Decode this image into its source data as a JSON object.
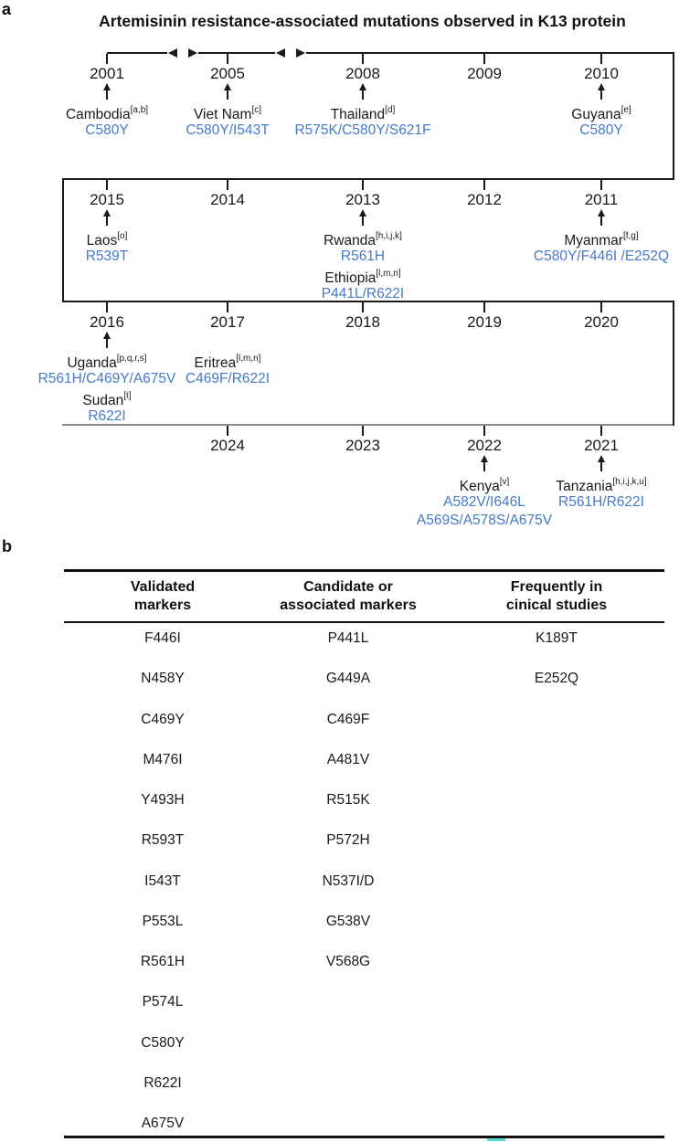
{
  "figure": {
    "panel_a_label": "a",
    "panel_b_label": "b",
    "title": "Artemisinin resistance-associated mutations observed in K13 protein"
  },
  "colors": {
    "mutation_blue": "#4579c9",
    "timeline_dark": "#1a1a1a",
    "timeline_gray": "#8c8c8c",
    "teal_mark": "#5ad8d4"
  },
  "timeline_rows": [
    {
      "years": [
        {
          "year": "2001",
          "slot": 0,
          "arrow": true,
          "annotations": [
            {
              "country": "Cambodia",
              "sup": "[a,b]",
              "mutations": [
                "C580Y"
              ]
            }
          ]
        },
        {
          "year": "2005",
          "slot": 1,
          "arrow": true,
          "annotations": [
            {
              "country": "Viet Nam",
              "sup": "[c]",
              "mutations": [
                "C580Y/I543T"
              ]
            }
          ]
        },
        {
          "year": "2008",
          "slot": 2,
          "arrow": true,
          "annotations": [
            {
              "country": "Thailand",
              "sup": "[d]",
              "mutations": [
                "R575K/C580Y/S621F"
              ]
            }
          ]
        },
        {
          "year": "2009",
          "slot": 3,
          "arrow": false,
          "annotations": []
        },
        {
          "year": "2010",
          "slot": 4,
          "arrow": true,
          "annotations": [
            {
              "country": "Guyana",
              "sup": "[e]",
              "mutations": [
                "C580Y"
              ]
            }
          ]
        }
      ]
    },
    {
      "years": [
        {
          "year": "2015",
          "slot": 0,
          "arrow": true,
          "annotations": [
            {
              "country": "Laos",
              "sup": "[o]",
              "mutations": [
                "R539T"
              ]
            }
          ]
        },
        {
          "year": "2014",
          "slot": 1,
          "arrow": false,
          "annotations": []
        },
        {
          "year": "2013",
          "slot": 2,
          "arrow": true,
          "annotations": [
            {
              "country": "Rwanda",
              "sup": "[h,i,j,k]",
              "mutations": [
                "R561H"
              ]
            },
            {
              "country": "Ethiopia",
              "sup": "[l,m,n]",
              "mutations": [
                "P441L/R622I"
              ]
            }
          ]
        },
        {
          "year": "2012",
          "slot": 3,
          "arrow": false,
          "annotations": []
        },
        {
          "year": "2011",
          "slot": 4,
          "arrow": true,
          "annotations": [
            {
              "country": "Myanmar",
              "sup": "[f,g]",
              "mutations": [
                "C580Y/F446I /E252Q"
              ]
            }
          ]
        }
      ]
    },
    {
      "years": [
        {
          "year": "2016",
          "slot": 0,
          "arrow": true,
          "annotations": [
            {
              "country": "Uganda",
              "sup": "[p,q,r,s]",
              "mutations": [
                "R561H/C469Y/A675V"
              ]
            },
            {
              "country": "Sudan",
              "sup": "[t]",
              "mutations": [
                "R622I"
              ]
            }
          ]
        },
        {
          "year": "2017",
          "slot": 1,
          "arrow": false,
          "annotations": [
            {
              "country": "Eritrea",
              "sup": "[l,m,n]",
              "mutations": [
                "C469F/R622I"
              ]
            }
          ]
        },
        {
          "year": "2018",
          "slot": 2,
          "arrow": false,
          "annotations": []
        },
        {
          "year": "2019",
          "slot": 3,
          "arrow": false,
          "annotations": []
        },
        {
          "year": "2020",
          "slot": 4,
          "arrow": false,
          "annotations": []
        }
      ]
    },
    {
      "years": [
        {
          "year": "2024",
          "slot": 1,
          "arrow": false,
          "annotations": []
        },
        {
          "year": "2023",
          "slot": 2,
          "arrow": false,
          "annotations": []
        },
        {
          "year": "2022",
          "slot": 3,
          "arrow": true,
          "annotations": [
            {
              "country": "Kenya",
              "sup": "[v]",
              "mutations": [
                "A582V/I646L",
                "A569S/A578S/A675V"
              ]
            }
          ]
        },
        {
          "year": "2021",
          "slot": 4,
          "arrow": true,
          "annotations": [
            {
              "country": "Tanzania",
              "sup": "[h,i,j,k,u]",
              "mutations": [
                "R561H/R622I"
              ]
            }
          ]
        }
      ]
    }
  ],
  "markers_table": {
    "headers": [
      {
        "line1": "Validated",
        "line2": "markers"
      },
      {
        "line1": "Candidate or",
        "line2": "associated markers"
      },
      {
        "line1": "Frequently in",
        "line2": "cinical studies"
      }
    ],
    "columns": {
      "validated": [
        "F446I",
        "N458Y",
        "C469Y",
        "M476I",
        "Y493H",
        "R593T",
        "I543T",
        "P553L",
        "R561H",
        "P574L",
        "C580Y",
        "R622I",
        "A675V"
      ],
      "candidate_or_associated": [
        "P441L",
        "G449A",
        "C469F",
        "A481V",
        "R515K",
        "P572H",
        "N537I/D",
        "G538V",
        "V568G"
      ],
      "frequently_in_clinical": [
        "K189T",
        "E252Q"
      ]
    }
  }
}
